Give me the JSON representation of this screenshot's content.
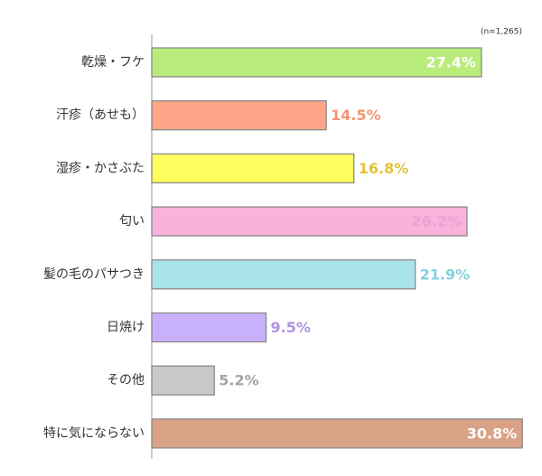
{
  "chart_data": {
    "type": "bar",
    "orientation": "horizontal",
    "annotation": "(n=1,265)",
    "categories": [
      "乾燥・フケ",
      "汗疹（あせも）",
      "湿疹・かさぶた",
      "匂い",
      "髪の毛のパサつき",
      "日焼け",
      "その他",
      "特に気にならない"
    ],
    "values": [
      27.4,
      14.5,
      16.8,
      26.2,
      21.9,
      9.5,
      5.2,
      30.8
    ],
    "value_labels": [
      "27.4%",
      "14.5%",
      "16.8%",
      "26.2%",
      "21.9%",
      "9.5%",
      "5.2%",
      "30.8%"
    ],
    "colors": [
      "#b9ec7b",
      "#fda688",
      "#fffe5e",
      "#f7b3dc",
      "#a9e4ec",
      "#c9b0fa",
      "#c9c9c9",
      "#d9a287"
    ],
    "label_colors": [
      "#ffffff",
      "#f49373",
      "#e2c43a",
      "#eca3cf",
      "#86d0df",
      "#ae93e2",
      "#a4a4a4",
      "#ffffff"
    ]
  }
}
